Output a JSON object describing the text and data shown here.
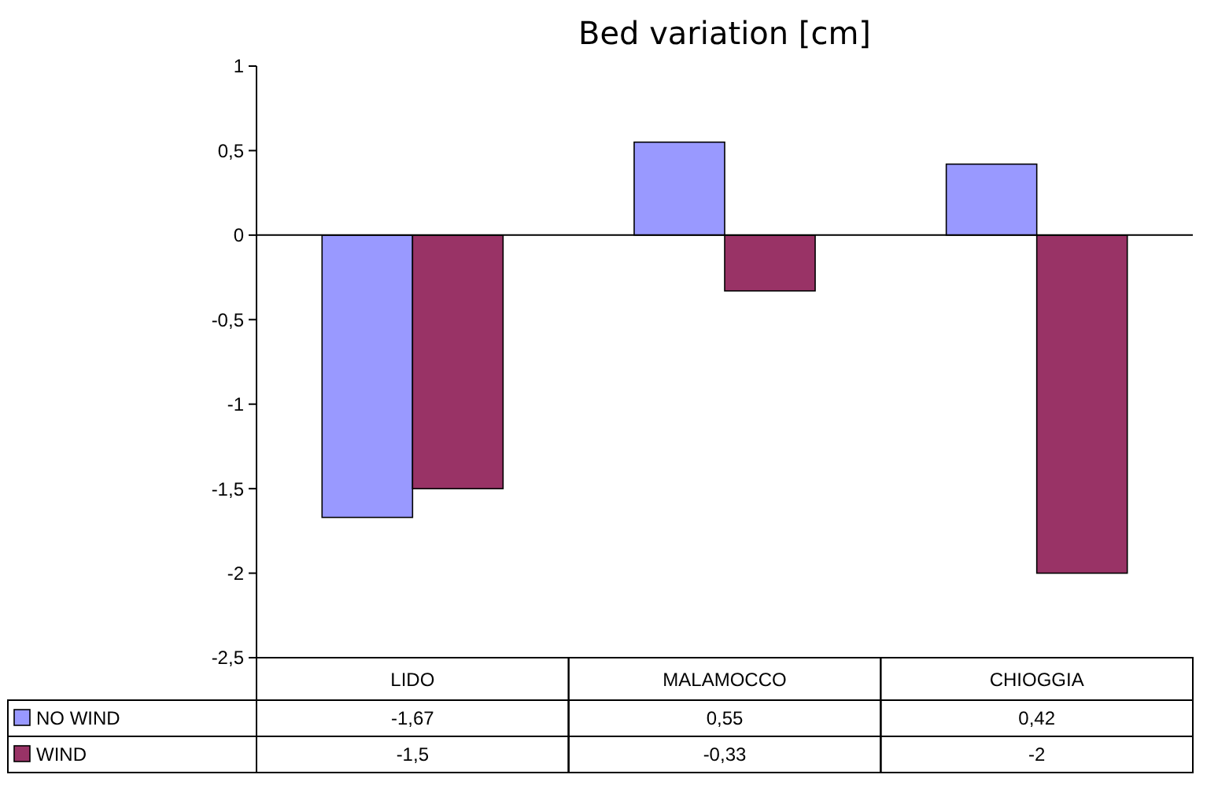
{
  "chart_data": {
    "type": "bar",
    "title": "Bed variation [cm]",
    "categories": [
      "LIDO",
      "MALAMOCCO",
      "CHIOGGIA"
    ],
    "series": [
      {
        "name": "NO WIND",
        "color": "#9999ff",
        "values": [
          -1.67,
          0.55,
          0.42
        ],
        "value_labels": [
          "-1,67",
          "0,55",
          "0,42"
        ]
      },
      {
        "name": "WIND",
        "color": "#993366",
        "values": [
          -1.5,
          -0.33,
          -2
        ],
        "value_labels": [
          "-1,5",
          "-0,33",
          "-2"
        ]
      }
    ],
    "ylim": [
      -2.5,
      1
    ],
    "yticks": [
      {
        "value": -2.5,
        "label": "-2,5"
      },
      -2,
      {
        "value": -1.5,
        "label": "-1,5"
      },
      -1,
      {
        "value": -0.5,
        "label": "-0,5"
      },
      0,
      {
        "value": 0.5,
        "label": "0,5"
      },
      1
    ],
    "legend": "bottom"
  }
}
